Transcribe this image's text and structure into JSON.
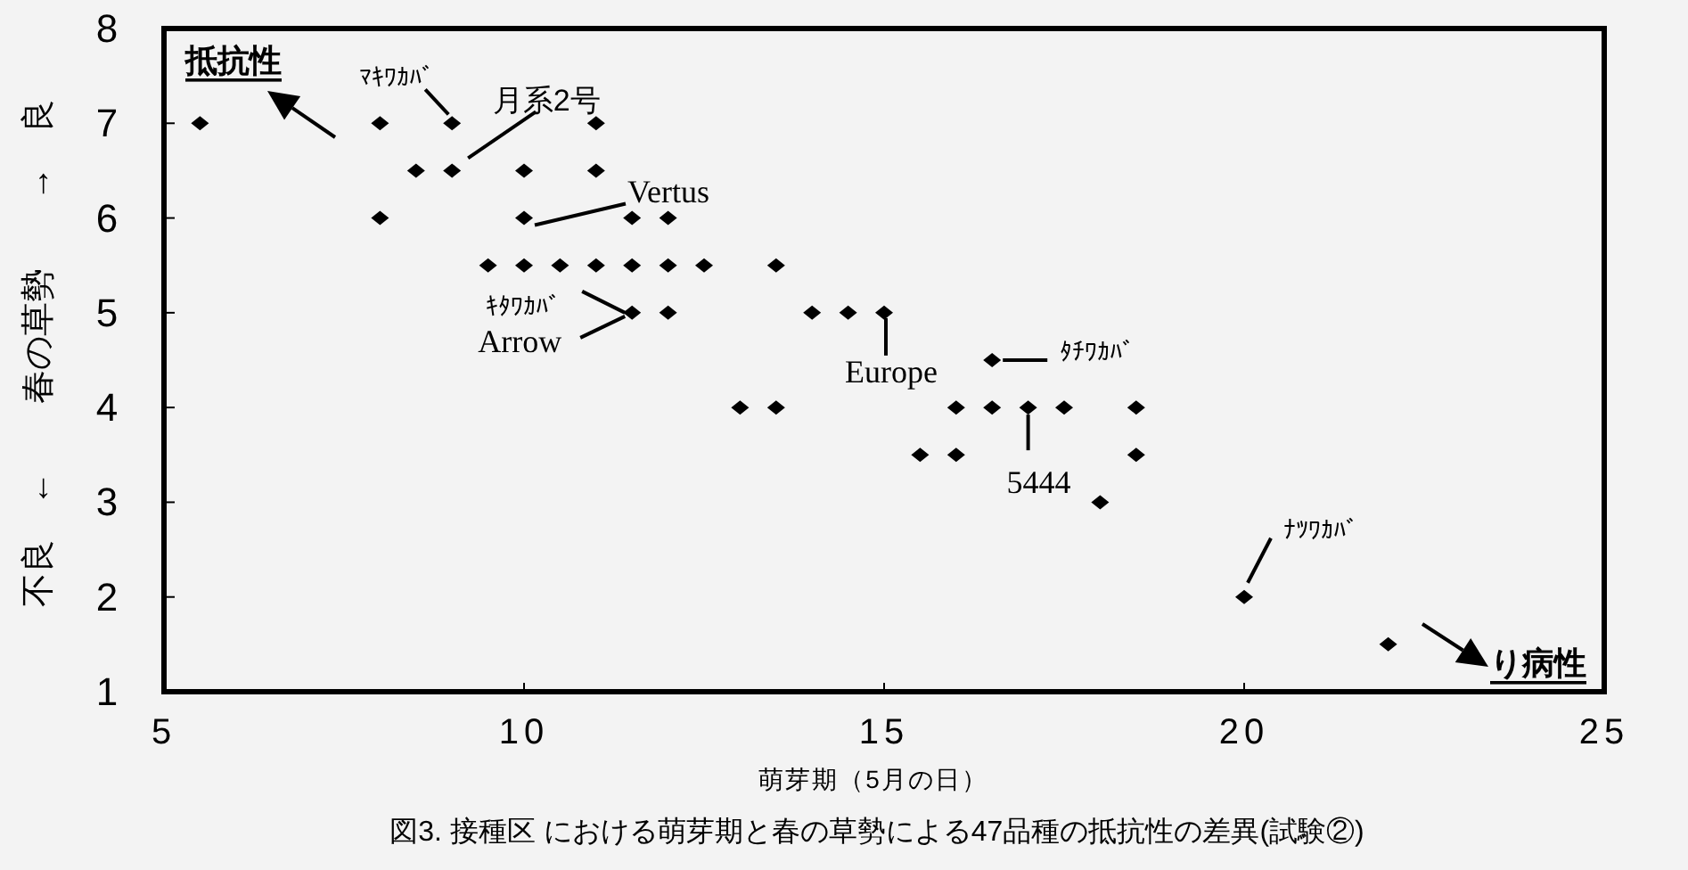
{
  "chart_data": {
    "type": "scatter",
    "title": "図3. 接種区 における萌芽期と春の草勢による47品種の抵抗性の差異(試験②)",
    "xlabel": "萌芽期（5月の日）",
    "ylabel": "不良　←　　春の草勢　　→　良",
    "x": [
      5.5,
      8,
      9,
      11,
      8.5,
      9,
      10,
      11,
      8,
      10,
      11.5,
      12,
      9.5,
      10,
      10.5,
      11,
      11.5,
      12,
      12.5,
      13.5,
      11.5,
      12,
      14,
      14.5,
      15,
      16.5,
      13,
      13.5,
      16,
      16.5,
      17,
      17.5,
      18.5,
      15.5,
      16,
      18.5,
      18,
      20,
      22
    ],
    "values": [
      7,
      7,
      7,
      7,
      6.5,
      6.5,
      6.5,
      6.5,
      6,
      6,
      6,
      6,
      5.5,
      5.5,
      5.5,
      5.5,
      5.5,
      5.5,
      5.5,
      5.5,
      5,
      5,
      5,
      5,
      5,
      4.5,
      4,
      4,
      4,
      4,
      4,
      4,
      4,
      3.5,
      3.5,
      3.5,
      3,
      2,
      1.5
    ],
    "color": "#000000",
    "marker": "diamond",
    "xlim": [
      5,
      25
    ],
    "ylim": [
      1,
      8
    ],
    "xticks": [
      5,
      10,
      15,
      20,
      25
    ],
    "yticks": [
      1,
      2,
      3,
      4,
      5,
      6,
      7,
      8
    ],
    "annotations": [
      "抵抗性",
      "り病性",
      {
        "text": "ﾏｷﾜｶﾊﾞ",
        "x": 9,
        "y": 7
      },
      {
        "text": "月系2号",
        "x": 9,
        "y": 6.5
      },
      {
        "text": "Vertus",
        "x": 10,
        "y": 6
      },
      {
        "text": "ｷﾀﾜｶﾊﾞ",
        "x": 11.5,
        "y": 5
      },
      {
        "text": "Arrow",
        "x": 11.5,
        "y": 5
      },
      {
        "text": "Europe",
        "x": 15,
        "y": 5
      },
      {
        "text": "ﾀﾁﾜｶﾊﾞ",
        "x": 16.5,
        "y": 4.5
      },
      {
        "text": "5444",
        "x": 17,
        "y": 4
      },
      {
        "text": "ﾅﾂﾜｶﾊﾞ",
        "x": 20,
        "y": 2
      }
    ]
  }
}
